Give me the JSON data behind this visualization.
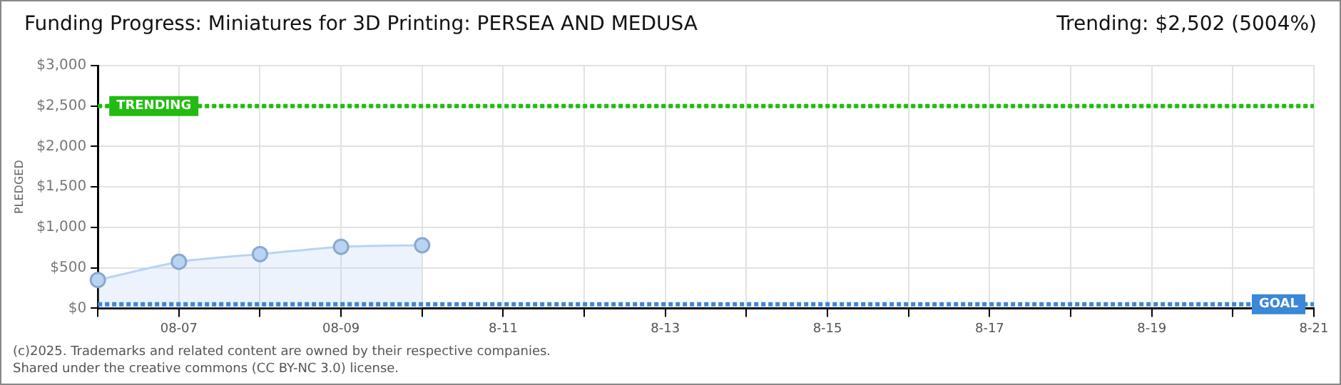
{
  "chart_data": {
    "type": "area",
    "title": "Funding Progress: Miniatures for 3D Printing: PERSEA AND MEDUSA",
    "subtitle": "Trending: $2,502 (5004%)",
    "ylabel": "PLEDGED",
    "categories": [
      null,
      "08-07",
      null,
      "08-09",
      null,
      "8-11",
      null,
      "8-13",
      null,
      "8-15",
      null,
      "8-17",
      null,
      "8-19",
      null,
      "8-21"
    ],
    "series": [
      {
        "color": "#b9d3f3",
        "values": [
          350,
          575,
          670,
          760,
          780,
          null,
          null,
          null,
          null,
          null,
          null,
          null,
          null,
          null,
          null,
          null
        ]
      }
    ],
    "ylim": [
      0,
      3000
    ],
    "yticks": [
      {
        "value": 0,
        "label": "$0"
      },
      {
        "value": 500,
        "label": "$500"
      },
      {
        "value": 1000,
        "label": "$1,000"
      },
      {
        "value": 1500,
        "label": "$1,500"
      },
      {
        "value": 2000,
        "label": "$2,000"
      },
      {
        "value": 2500,
        "label": "$2,500"
      },
      {
        "value": 3000,
        "label": "$3,000"
      }
    ],
    "ref_lines": [
      {
        "axis": "y",
        "value": 2500,
        "label": "TRENDING",
        "color": "#22bb11",
        "line_style": "dotted"
      },
      {
        "axis": "y",
        "value": 50,
        "label": "GOAL",
        "color": "#3b87d8",
        "line_style": "dotted"
      }
    ],
    "annotations": [
      "(c)2025. Trademarks and related content are owned by their respective companies.",
      "Shared under the creative commons (CC BY-NC 3.0) license."
    ],
    "grid": true,
    "legend": false,
    "marker": "circle",
    "line_style": "solid"
  }
}
